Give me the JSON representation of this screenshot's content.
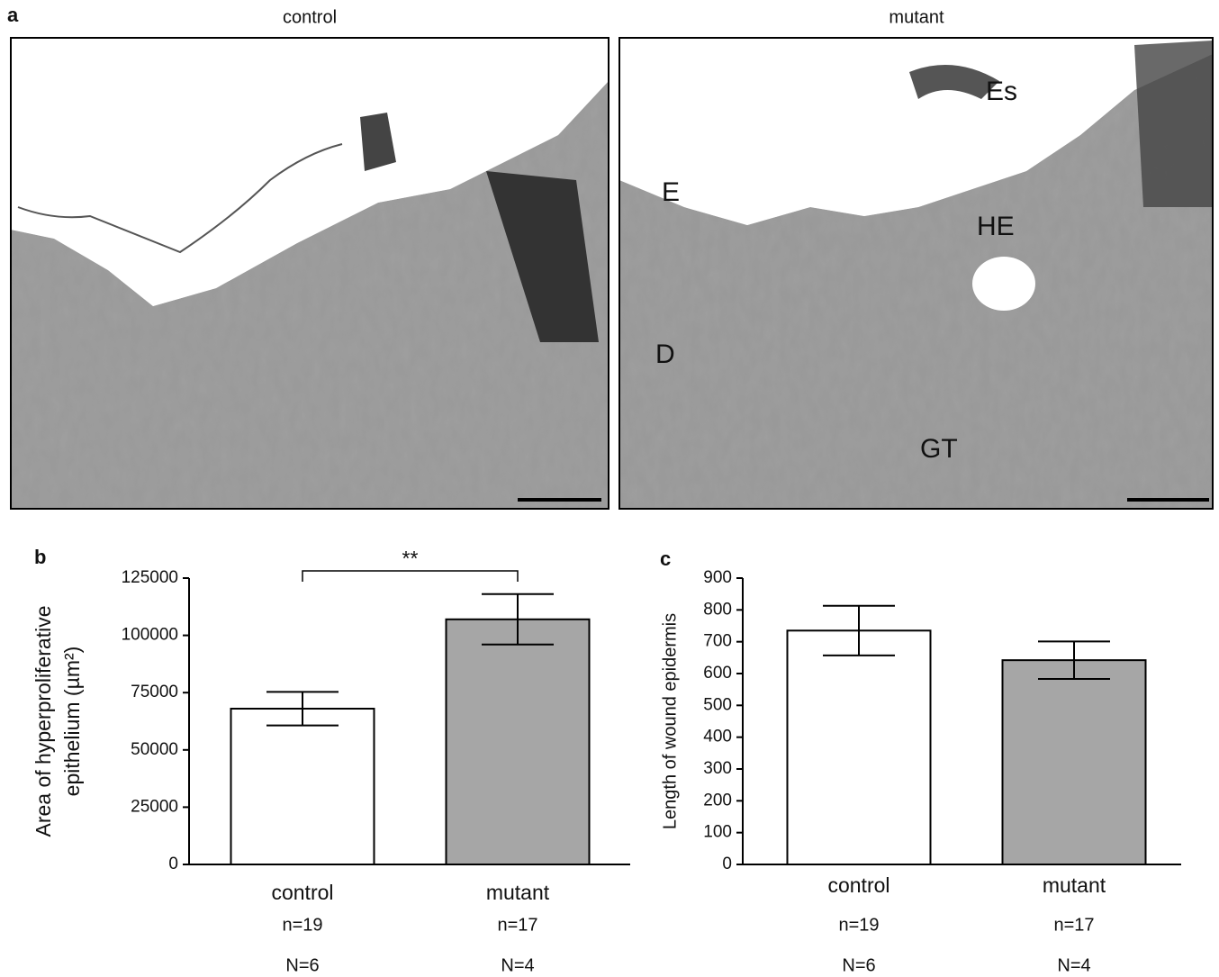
{
  "micrographs": {
    "panel": "a",
    "images": [
      {
        "title": "control"
      },
      {
        "title": "mutant",
        "labels": [
          "Es",
          "E",
          "HE",
          "D",
          "GT"
        ]
      }
    ]
  },
  "chart_data": [
    {
      "type": "bar",
      "panel": "b",
      "ylabel": [
        "Area of hyperproliferative",
        "epithelium (µm²)"
      ],
      "categories": [
        "control",
        "mutant"
      ],
      "values": [
        68000,
        107000
      ],
      "errors": [
        7300,
        11000
      ],
      "colors": [
        "#ffffff",
        "#a6a6a6"
      ],
      "sample_sizes": {
        "n": [
          "n=19",
          "n=17"
        ],
        "N": [
          "N=6",
          "N=4"
        ]
      },
      "annotation": "**",
      "ylim": [
        0,
        125000
      ],
      "yticks": [
        0,
        25000,
        50000,
        75000,
        100000,
        125000
      ]
    },
    {
      "type": "bar",
      "panel": "c",
      "ylabel": [
        "Length of wound epidermis"
      ],
      "categories": [
        "control",
        "mutant"
      ],
      "values": [
        735,
        642
      ],
      "errors": [
        78,
        59
      ],
      "colors": [
        "#ffffff",
        "#a6a6a6"
      ],
      "sample_sizes": {
        "n": [
          "n=19",
          "n=17"
        ],
        "N": [
          "N=6",
          "N=4"
        ]
      },
      "ylim": [
        0,
        900
      ],
      "yticks": [
        0,
        100,
        200,
        300,
        400,
        500,
        600,
        700,
        800,
        900
      ]
    }
  ]
}
